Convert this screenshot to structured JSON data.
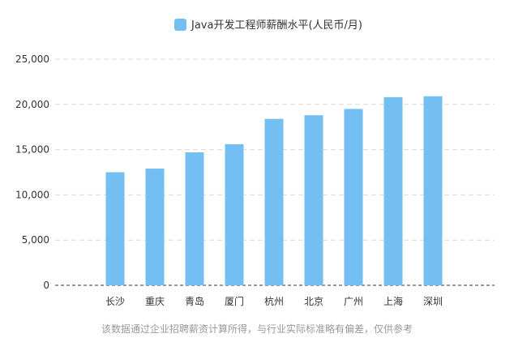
{
  "chart_data": {
    "type": "bar",
    "legend": {
      "label": "Java开发工程师薪酬水平(人民币/月)",
      "placement": "top-center"
    },
    "categories": [
      "长沙",
      "重庆",
      "青岛",
      "厦门",
      "杭州",
      "北京",
      "广州",
      "上海",
      "深圳"
    ],
    "series": [
      {
        "name": "Java开发工程师薪酬水平(人民币/月)",
        "values": [
          12500,
          12900,
          14700,
          15600,
          18400,
          18800,
          19500,
          20800,
          20900
        ]
      }
    ],
    "y_ticks": [
      "0",
      "5,000",
      "10,000",
      "15,000",
      "20,000",
      "25,000"
    ],
    "ylim": [
      0,
      25000
    ],
    "grid": true,
    "bar_color": "#74bff2"
  },
  "footnote": "该数据通过企业招聘薪资计算所得，与行业实际标准略有偏差，仅供参考"
}
